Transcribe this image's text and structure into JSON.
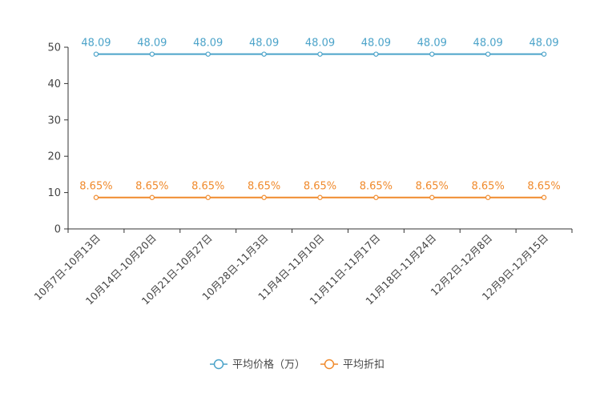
{
  "chart_data": {
    "type": "line",
    "title": "",
    "xlabel": "",
    "ylabel": "",
    "ylim": [
      0,
      50
    ],
    "y_ticks": [
      0,
      10,
      20,
      30,
      40,
      50
    ],
    "grid": false,
    "legend_position": "bottom",
    "categories": [
      "10月7日-10月13日",
      "10月14日-10月20日",
      "10月21日-10月27日",
      "10月28日-11月3日",
      "11月4日-11月10日",
      "11月11日-11月17日",
      "11月18日-11月24日",
      "12月2日-12月8日",
      "12月9日-12月15日"
    ],
    "series": [
      {
        "name": "平均价格（万）",
        "color": "#4BA3C9",
        "values": [
          48.09,
          48.09,
          48.09,
          48.09,
          48.09,
          48.09,
          48.09,
          48.09,
          48.09
        ],
        "labels": [
          "48.09",
          "48.09",
          "48.09",
          "48.09",
          "48.09",
          "48.09",
          "48.09",
          "48.09",
          "48.09"
        ]
      },
      {
        "name": "平均折扣",
        "color": "#F08A2C",
        "values": [
          8.65,
          8.65,
          8.65,
          8.65,
          8.65,
          8.65,
          8.65,
          8.65,
          8.65
        ],
        "labels": [
          "8.65%",
          "8.65%",
          "8.65%",
          "8.65%",
          "8.65%",
          "8.65%",
          "8.65%",
          "8.65%",
          "8.65%"
        ]
      }
    ]
  }
}
